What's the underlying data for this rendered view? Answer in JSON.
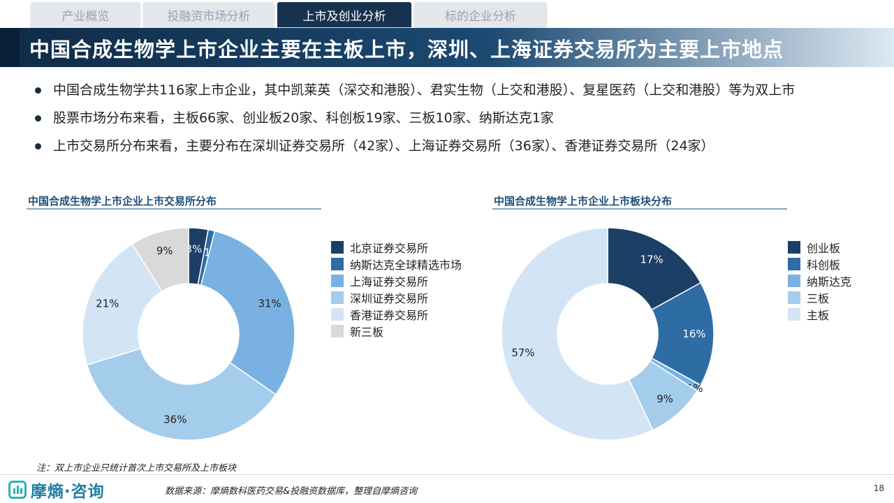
{
  "tabs": [
    {
      "label": "产业概览",
      "active": false
    },
    {
      "label": "投融资市场分析",
      "active": false
    },
    {
      "label": "上市及创业分析",
      "active": true
    },
    {
      "label": "标的企业分析",
      "active": false
    }
  ],
  "title": "中国合成生物学上市企业主要在主板上市，深圳、上海证券交易所为主要上市地点",
  "bullets": [
    "中国合成生物学共116家上市企业，其中凯莱英（深交和港股）、君实生物（上交和港股）、复星医药（上交和港股）等为双上市",
    "股票市场分布来看，主板66家、创业板20家、科创板19家、三板10家、纳斯达克1家",
    "上市交易所分布来看，主要分布在深圳证券交易所（42家）、上海证券交易所（36家）、香港证券交易所（24家）"
  ],
  "chart_data": [
    {
      "type": "pie",
      "title": "中国合成生物学上市企业上市交易所分布",
      "donut": true,
      "categories": [
        "北京证券交易所",
        "纳斯达克全球精选市场",
        "上海证券交易所",
        "深圳证券交易所",
        "香港证券交易所",
        "新三板"
      ],
      "values": [
        3,
        1,
        31,
        36,
        21,
        9
      ],
      "labels": [
        "3%",
        "1%",
        "31%",
        "36%",
        "21%",
        "9%"
      ],
      "colors": [
        "#1c3f66",
        "#2e6da4",
        "#79b2e2",
        "#a4cceb",
        "#d3e5f5",
        "#d9d9d9"
      ],
      "legend_position": "right"
    },
    {
      "type": "pie",
      "title": "中国合成生物学上市企业上市板块分布",
      "donut": true,
      "categories": [
        "创业板",
        "科创板",
        "纳斯达克",
        "三板",
        "主板"
      ],
      "values": [
        17,
        16,
        1,
        9,
        57
      ],
      "labels": [
        "17%",
        "16%",
        "1%",
        "9%",
        "57%"
      ],
      "colors": [
        "#1c3f66",
        "#2e6da4",
        "#79b2e2",
        "#a4cceb",
        "#d3e5f5"
      ],
      "legend_position": "right"
    }
  ],
  "footer": {
    "note": "注：双上市企业只统计首次上市交易所及上市板块",
    "logo_text": "摩熵·咨询",
    "source": "数据来源：摩熵数科医药交易&投融资数据库，整理自摩熵咨询",
    "page_number": "18"
  }
}
